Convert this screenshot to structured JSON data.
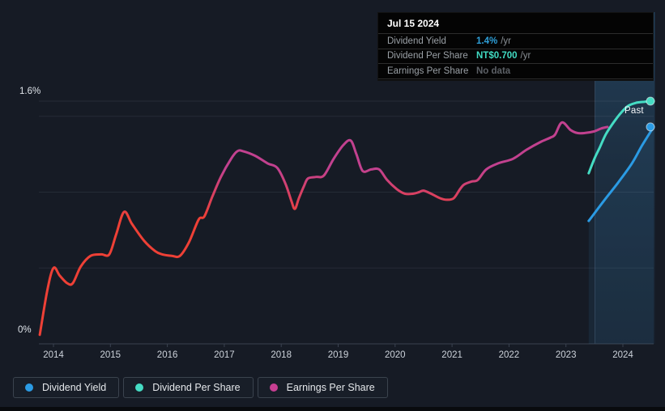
{
  "axis": {
    "y_top_label": "1.6%",
    "y_bottom_label": "0%",
    "past_label": "Past"
  },
  "tooltip": {
    "date": "Jul 15 2024",
    "rows": [
      {
        "label": "Dividend Yield",
        "value": "1.4%",
        "unit": "/yr",
        "color": "#2e9fd8"
      },
      {
        "label": "Dividend Per Share",
        "value": "NT$0.700",
        "unit": "/yr",
        "color": "#41dbc3"
      },
      {
        "label": "Earnings Per Share",
        "value": "No data",
        "unit": "",
        "color": "#5c6066"
      }
    ]
  },
  "legend": [
    {
      "label": "Dividend Yield",
      "color": "#2b9be4"
    },
    {
      "label": "Dividend Per Share",
      "color": "#45dcc4"
    },
    {
      "label": "Earnings Per Share",
      "color": "#c73f92"
    }
  ],
  "colors": {
    "background": "#161b25",
    "grid": "rgba(175,190,210,0.10)",
    "axis": "#3a4250",
    "tick_text": "#ccd2da",
    "eps_low": "#ee4036",
    "eps_high": "#c2418f",
    "yield_blue": "#2b9be4",
    "dps_teal": "#45dcc4",
    "past_band": "62,148,210"
  },
  "chart_data": {
    "type": "line",
    "title": "Dividend history",
    "x_ticks": [
      2014,
      2015,
      2016,
      2017,
      2018,
      2019,
      2020,
      2021,
      2022,
      2023,
      2024
    ],
    "x_range": [
      2013.74,
      2024.56
    ],
    "y_axis": {
      "unit": "%",
      "min": 0,
      "max": 1.6,
      "gridlines_pct": [
        0.5,
        1.0,
        1.5,
        1.6
      ]
    },
    "past_band": {
      "from": 2023.51,
      "to": 2024.54
    },
    "series": [
      {
        "name": "Earnings Per Share",
        "style": "gradient-red-to-magenta",
        "axis": "overlay (plotted on % axis)",
        "points": [
          [
            2013.76,
            0.06
          ],
          [
            2013.89,
            0.35
          ],
          [
            2014.0,
            0.5
          ],
          [
            2014.11,
            0.45
          ],
          [
            2014.24,
            0.4
          ],
          [
            2014.34,
            0.4
          ],
          [
            2014.48,
            0.51
          ],
          [
            2014.65,
            0.58
          ],
          [
            2014.84,
            0.59
          ],
          [
            2014.98,
            0.59
          ],
          [
            2015.1,
            0.72
          ],
          [
            2015.24,
            0.87
          ],
          [
            2015.38,
            0.79
          ],
          [
            2015.59,
            0.68
          ],
          [
            2015.79,
            0.61
          ],
          [
            2015.91,
            0.59
          ],
          [
            2016.08,
            0.58
          ],
          [
            2016.22,
            0.58
          ],
          [
            2016.38,
            0.67
          ],
          [
            2016.55,
            0.82
          ],
          [
            2016.65,
            0.84
          ],
          [
            2016.79,
            0.97
          ],
          [
            2016.94,
            1.1
          ],
          [
            2017.12,
            1.22
          ],
          [
            2017.23,
            1.27
          ],
          [
            2017.33,
            1.27
          ],
          [
            2017.54,
            1.24
          ],
          [
            2017.76,
            1.19
          ],
          [
            2017.93,
            1.16
          ],
          [
            2018.07,
            1.06
          ],
          [
            2018.18,
            0.94
          ],
          [
            2018.24,
            0.89
          ],
          [
            2018.31,
            0.96
          ],
          [
            2018.4,
            1.04
          ],
          [
            2018.47,
            1.09
          ],
          [
            2018.61,
            1.1
          ],
          [
            2018.75,
            1.11
          ],
          [
            2018.92,
            1.22
          ],
          [
            2019.09,
            1.31
          ],
          [
            2019.22,
            1.34
          ],
          [
            2019.32,
            1.25
          ],
          [
            2019.43,
            1.14
          ],
          [
            2019.58,
            1.15
          ],
          [
            2019.72,
            1.15
          ],
          [
            2019.86,
            1.08
          ],
          [
            2020.03,
            1.02
          ],
          [
            2020.17,
            0.99
          ],
          [
            2020.32,
            0.99
          ],
          [
            2020.42,
            1.0
          ],
          [
            2020.5,
            1.01
          ],
          [
            2020.63,
            0.99
          ],
          [
            2020.79,
            0.96
          ],
          [
            2020.91,
            0.95
          ],
          [
            2021.03,
            0.96
          ],
          [
            2021.14,
            1.02
          ],
          [
            2021.21,
            1.05
          ],
          [
            2021.34,
            1.07
          ],
          [
            2021.45,
            1.08
          ],
          [
            2021.6,
            1.15
          ],
          [
            2021.81,
            1.19
          ],
          [
            2022.07,
            1.22
          ],
          [
            2022.31,
            1.28
          ],
          [
            2022.55,
            1.33
          ],
          [
            2022.73,
            1.36
          ],
          [
            2022.81,
            1.38
          ],
          [
            2022.93,
            1.46
          ],
          [
            2023.08,
            1.41
          ],
          [
            2023.2,
            1.39
          ],
          [
            2023.33,
            1.39
          ],
          [
            2023.49,
            1.4
          ],
          [
            2023.62,
            1.42
          ],
          [
            2023.73,
            1.43
          ]
        ]
      },
      {
        "name": "Dividend Yield",
        "style": "solid",
        "unit": "%",
        "endpoint_dot": true,
        "points": [
          [
            2023.4,
            0.81
          ],
          [
            2023.66,
            0.94
          ],
          [
            2023.91,
            1.06
          ],
          [
            2024.16,
            1.19
          ],
          [
            2024.34,
            1.31
          ],
          [
            2024.54,
            1.43
          ]
        ]
      },
      {
        "name": "Dividend Per Share",
        "style": "solid",
        "unit": "NT$",
        "scale": {
          "value_at_axis_top": 0.7,
          "axis_top_pct": 1.6
        },
        "endpoint_dot": true,
        "points": [
          [
            2023.4,
            0.492
          ],
          [
            2023.5,
            0.534
          ],
          [
            2023.59,
            0.565
          ],
          [
            2023.7,
            0.604
          ],
          [
            2023.83,
            0.637
          ],
          [
            2023.96,
            0.665
          ],
          [
            2024.09,
            0.686
          ],
          [
            2024.23,
            0.695
          ],
          [
            2024.37,
            0.698
          ],
          [
            2024.54,
            0.7
          ]
        ]
      }
    ]
  }
}
